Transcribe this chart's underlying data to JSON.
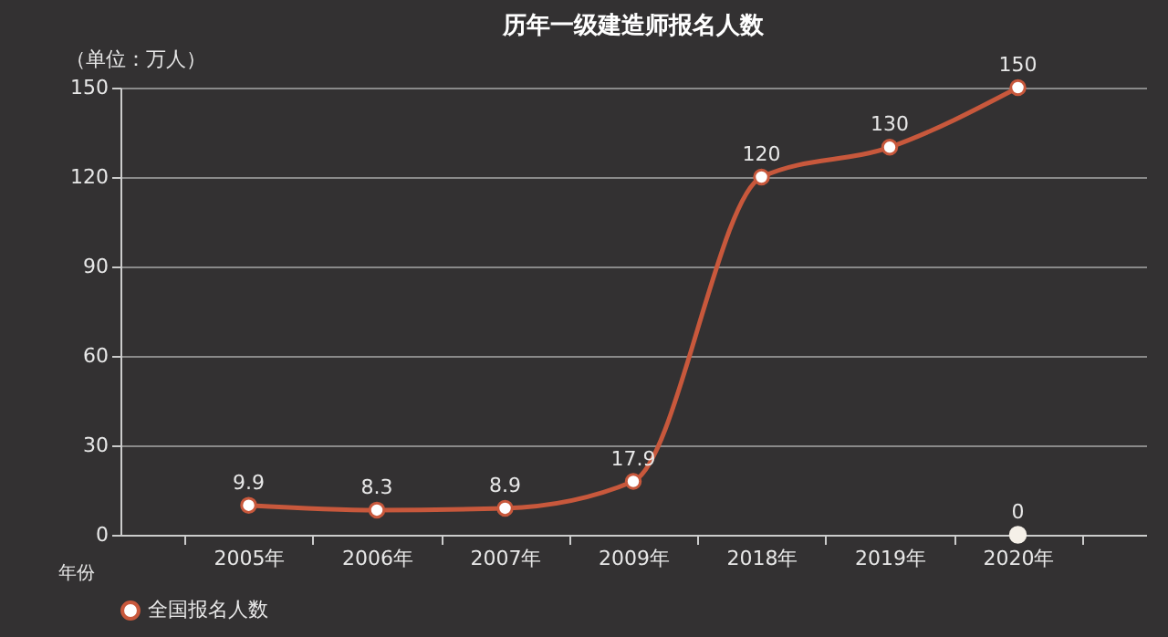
{
  "chart_data": {
    "type": "line",
    "title": "历年一级建造师报名人数",
    "ylabel": "（单位：万人）",
    "xlabel": "年份",
    "categories": [
      "2005年",
      "2006年",
      "2007年",
      "2009年",
      "2018年",
      "2019年",
      "2020年"
    ],
    "series": [
      {
        "name": "全国报名人数",
        "color": "#c8583c",
        "values": [
          9.9,
          8.3,
          8.9,
          17.9,
          120,
          130,
          150
        ]
      },
      {
        "type": "scatter",
        "color": "#f5f0e8",
        "values": [
          null,
          null,
          null,
          null,
          null,
          null,
          0
        ]
      }
    ],
    "ylim": [
      0,
      150
    ],
    "yticks": [
      0,
      30,
      60,
      90,
      120,
      150
    ],
    "grid": "y",
    "legend": "bottom",
    "marker": "circle",
    "data_labels": true
  }
}
